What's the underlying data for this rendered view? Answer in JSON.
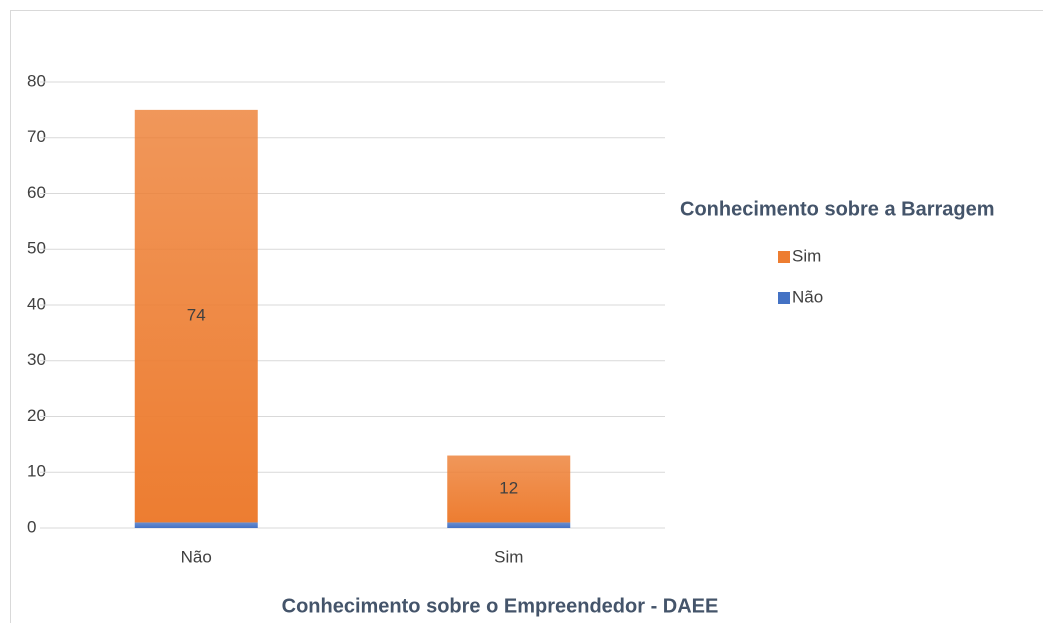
{
  "chart_data": {
    "type": "stacked_bar",
    "x_label": "Conhecimento sobre o Empreendedor - DAEE",
    "legend_title": "Conhecimento sobre a Barragem",
    "legend": "right",
    "categories": [
      "Não",
      "Sim"
    ],
    "series": [
      {
        "name": "Não",
        "color": "#4472c4",
        "values": [
          1,
          1
        ],
        "labels": false
      },
      {
        "name": "Sim",
        "color": "#ed7d31",
        "values": [
          74,
          12
        ],
        "labels": true
      }
    ],
    "legend_order": [
      1,
      0
    ],
    "ylim": [
      0,
      80
    ],
    "yticks": [
      0,
      10,
      20,
      30,
      40,
      50,
      60,
      70,
      80
    ],
    "grid": true
  }
}
